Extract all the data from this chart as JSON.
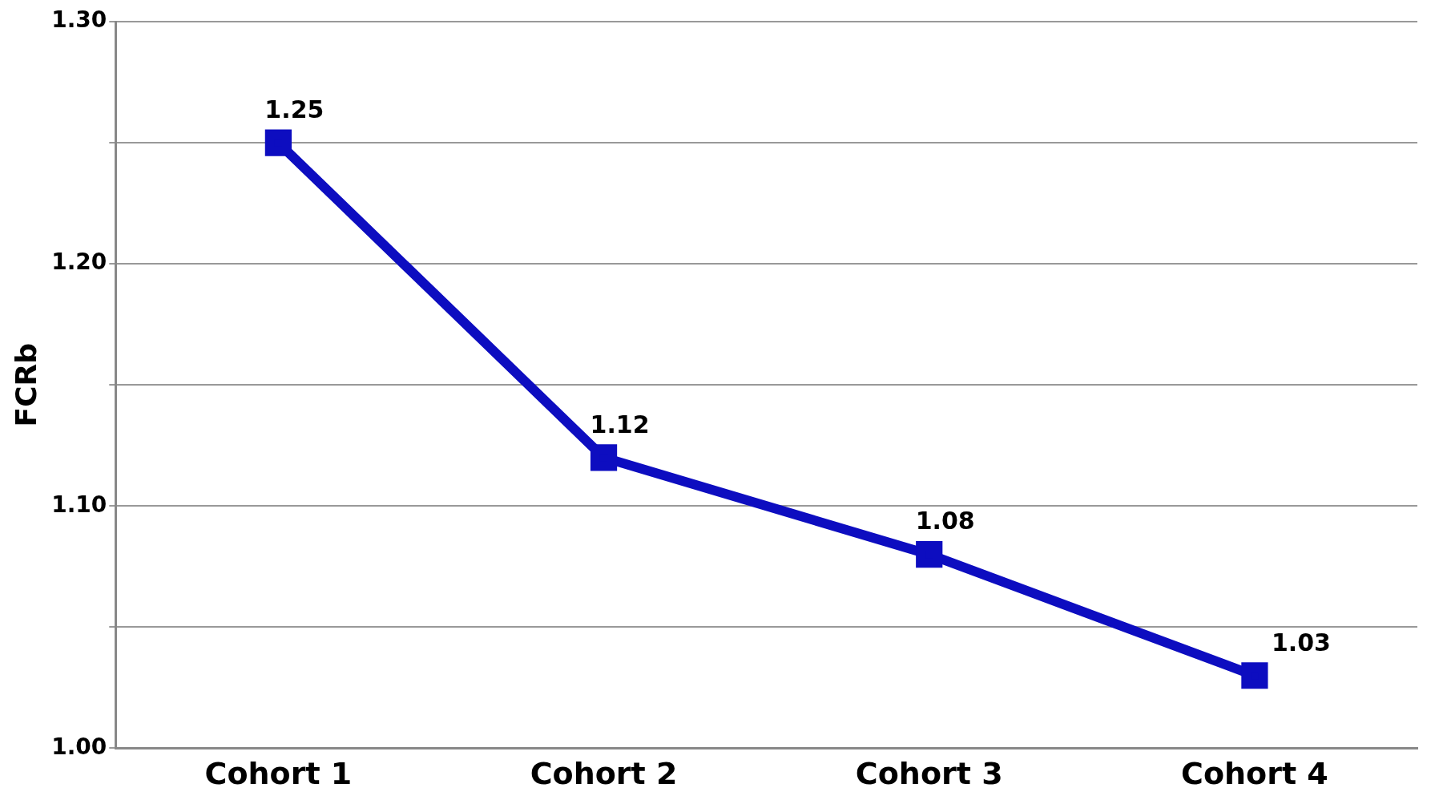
{
  "chart_data": {
    "type": "line",
    "ylabel": "FCRb",
    "categories": [
      "Cohort 1",
      "Cohort 2",
      "Cohort 3",
      "Cohort 4"
    ],
    "series": [
      {
        "color": "#0d0dc0",
        "values": [
          1.25,
          1.12,
          1.08,
          1.03
        ]
      }
    ],
    "ylim": [
      1.0,
      1.3
    ],
    "yticks": [
      {
        "value": 1.0,
        "label": "1.00"
      },
      {
        "value": 1.05,
        "label": null
      },
      {
        "value": 1.1,
        "label": "1.10"
      },
      {
        "value": 1.15,
        "label": null
      },
      {
        "value": 1.2,
        "label": "1.20"
      },
      {
        "value": 1.25,
        "label": null
      },
      {
        "value": 1.3,
        "label": "1.30"
      }
    ],
    "grid": "y",
    "legend": false,
    "marker": "square",
    "line_style": "solid",
    "data_labels": true
  }
}
